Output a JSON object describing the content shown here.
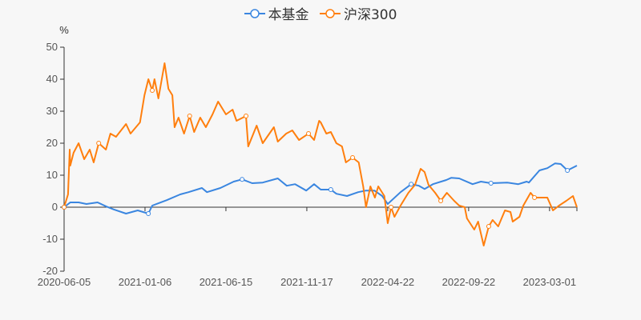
{
  "chart_data": {
    "type": "line",
    "title": "",
    "ylabel": "%",
    "xlabel": "",
    "ylim": [
      -20,
      50
    ],
    "yticks": [
      -20,
      -10,
      0,
      10,
      20,
      30,
      40,
      50
    ],
    "xlim": [
      0,
      919
    ],
    "x_unit": "trading-day index since 2020-06-05",
    "xticks": [
      {
        "x": 0,
        "label": "2020-06-05"
      },
      {
        "x": 145,
        "label": "2021-01-06"
      },
      {
        "x": 290,
        "label": "2021-06-15"
      },
      {
        "x": 435,
        "label": "2021-11-17"
      },
      {
        "x": 580,
        "label": "2022-04-22"
      },
      {
        "x": 725,
        "label": "2022-09-22"
      },
      {
        "x": 870,
        "label": "2023-03-01"
      }
    ],
    "grid": false,
    "legend_position": "top-center",
    "series": [
      {
        "name": "本基金",
        "color": "#3a86e0",
        "x": [
          0,
          11,
          26,
          40,
          60,
          76,
          89,
          111,
          132,
          151,
          158,
          184,
          208,
          223,
          247,
          256,
          280,
          304,
          319,
          337,
          356,
          383,
          399,
          414,
          434,
          448,
          460,
          478,
          488,
          507,
          527,
          541,
          556,
          570,
          580,
          603,
          622,
          636,
          646,
          661,
          685,
          694,
          708,
          732,
          747,
          765,
          794,
          814,
          829,
          833,
          852,
          866,
          880,
          890,
          902,
          919
        ],
        "y": [
          0,
          1.5,
          1.5,
          1,
          1.5,
          0.2,
          -0.7,
          -2,
          -1,
          -2,
          0.5,
          2.2,
          4,
          4.7,
          6,
          4.7,
          6,
          8,
          8.7,
          7.5,
          7.7,
          9,
          6.7,
          7.2,
          5.2,
          7.2,
          5.5,
          5.5,
          4.2,
          3.5,
          4.7,
          5.2,
          5.2,
          3.5,
          1,
          4.7,
          7.2,
          6.7,
          5.7,
          7.2,
          8.5,
          9.2,
          9,
          7.2,
          8,
          7.5,
          7.7,
          7.2,
          8,
          7.7,
          11.5,
          12.2,
          13.7,
          13.5,
          11.5,
          13
        ]
      },
      {
        "name": "沪深300",
        "color": "#ff7f0e",
        "x": [
          0,
          7,
          10,
          11,
          17,
          26,
          36,
          46,
          53,
          62,
          75,
          83,
          93,
          111,
          119,
          136,
          144,
          151,
          158,
          162,
          169,
          180,
          187,
          194,
          198,
          205,
          215,
          225,
          233,
          244,
          254,
          266,
          276,
          290,
          302,
          309,
          326,
          330,
          345,
          356,
          376,
          383,
          398,
          409,
          421,
          438,
          448,
          457,
          460,
          470,
          478,
          488,
          498,
          505,
          517,
          528,
          536,
          541,
          549,
          557,
          563,
          574,
          580,
          586,
          592,
          603,
          617,
          629,
          639,
          646,
          653,
          665,
          675,
          686,
          699,
          708,
          718,
          722,
          735,
          742,
          752,
          761,
          768,
          778,
          790,
          800,
          804,
          816,
          823,
          836,
          843,
          854,
          866,
          876,
          887,
          900,
          912,
          919
        ],
        "y": [
          0,
          4,
          18,
          13,
          17,
          20,
          15,
          18,
          14,
          20,
          18,
          23,
          22,
          26,
          23,
          26.5,
          35,
          40,
          36.5,
          40,
          34,
          45,
          37,
          35,
          25,
          28,
          23,
          28.5,
          23.5,
          28,
          25,
          29,
          33,
          29,
          30.5,
          27,
          28.5,
          19,
          25.5,
          20,
          25,
          20.5,
          23,
          24,
          21,
          23,
          21,
          27,
          26.5,
          23,
          23.5,
          20,
          19,
          14,
          15.5,
          14,
          6.5,
          0,
          6.5,
          3,
          6.5,
          3.5,
          -5,
          0,
          -3,
          0.5,
          4.5,
          7,
          12,
          11,
          7,
          4.5,
          2,
          4.5,
          2,
          0.5,
          0,
          -3.5,
          -7,
          -4.5,
          -12,
          -6,
          -4,
          -6,
          -1,
          -1.5,
          -4.5,
          -3,
          0.5,
          4.5,
          3,
          3,
          3,
          -1,
          0.5,
          2,
          3.5,
          0
        ]
      }
    ]
  }
}
